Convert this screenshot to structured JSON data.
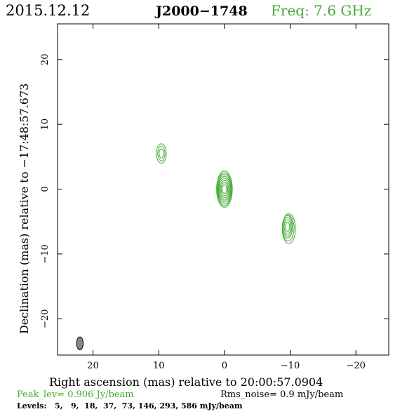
{
  "header": {
    "date": "2015.12.12",
    "source": "J2000−1748",
    "freq": "Freq: 7.6 GHz"
  },
  "axes": {
    "xlabel": "Right ascension (mas) relative to 20:00:57.0904",
    "ylabel": "Declination (mas) relative to −17:48:57.673"
  },
  "footer": {
    "peak": "Peak_lev=  0.906 Jy/beam",
    "rms": "Rms_noise=  0.9 mJy/beam",
    "levels": "Levels:   5,   9,  18,  37,  73, 146, 293, 586 mJy/beam"
  },
  "colors": {
    "accent": "#44aa33",
    "beam": "#888888"
  },
  "chart_data": {
    "type": "contour",
    "xlim": [
      25.4,
      -25
    ],
    "ylim": [
      -25.6,
      25.5
    ],
    "xticks": [
      20,
      10,
      0,
      -10,
      -20
    ],
    "xticklabels": [
      "20",
      "10",
      "0",
      "−10",
      "−20"
    ],
    "yticks": [
      20,
      10,
      0,
      -10,
      -20
    ],
    "yticklabels": [
      "20",
      "10",
      "0",
      "−10",
      "−20"
    ],
    "levels_mJy": [
      5,
      9,
      18,
      37,
      73,
      146,
      293,
      586
    ],
    "components": [
      {
        "x": 0.0,
        "y": 0.0,
        "contours": [
          {
            "a": 1.2,
            "b": 2.8
          },
          {
            "a": 1.1,
            "b": 2.55
          },
          {
            "a": 1.0,
            "b": 2.3
          },
          {
            "a": 0.9,
            "b": 2.0
          },
          {
            "a": 0.78,
            "b": 1.7
          },
          {
            "a": 0.64,
            "b": 1.35
          },
          {
            "a": 0.5,
            "b": 1.0
          },
          {
            "a": 0.34,
            "b": 0.65
          }
        ]
      },
      {
        "x": 9.6,
        "y": 5.5,
        "contours": [
          {
            "a": 0.75,
            "b": 1.5
          },
          {
            "a": 0.55,
            "b": 1.1
          },
          {
            "a": 0.35,
            "b": 0.7
          }
        ]
      },
      {
        "x": -9.6,
        "y": -5.8,
        "contours": [
          {
            "a": 1.0,
            "b": 2.3,
            "dx": -0.2,
            "dy": -0.3
          },
          {
            "a": 0.9,
            "b": 2.0,
            "dx": -0.1,
            "dy": -0.2
          },
          {
            "a": 0.78,
            "b": 1.75
          },
          {
            "a": 0.65,
            "b": 1.45
          },
          {
            "a": 0.5,
            "b": 1.1
          },
          {
            "a": 0.34,
            "b": 0.7
          }
        ]
      }
    ],
    "beam": {
      "x": 22.0,
      "y": -23.8,
      "major_mas": 2.0,
      "minor_mas": 1.0,
      "pa_deg": 0
    }
  }
}
